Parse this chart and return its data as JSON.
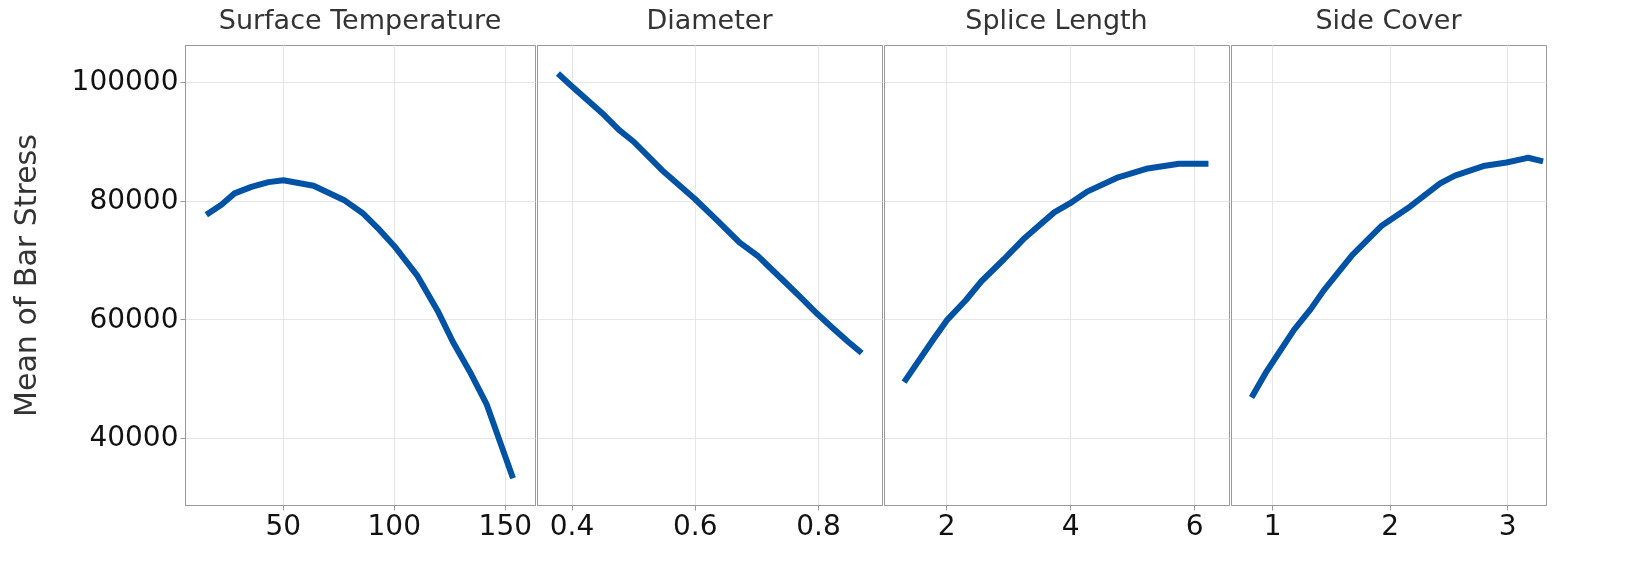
{
  "chart_data": [
    {
      "type": "line",
      "title": "Surface Temperature",
      "ylabel": "Mean of Bar Stress",
      "color": "#0052a5",
      "grid": true,
      "xlim": [
        6,
        163.6
      ],
      "xticks": [
        50,
        100,
        150
      ],
      "ylim": [
        28700,
        106200
      ],
      "yticks": [
        40000,
        60000,
        80000,
        100000
      ],
      "x": [
        15.6,
        22.4,
        28.3,
        35.9,
        43.6,
        50.3,
        63.9,
        77.5,
        85.9,
        92.7,
        100.3,
        110.5,
        119.8,
        126.6,
        134.2,
        141.9,
        153.7
      ],
      "values": [
        77600,
        79300,
        81200,
        82300,
        83100,
        83400,
        82500,
        80100,
        77900,
        75400,
        72300,
        67400,
        61400,
        56200,
        51200,
        45600,
        33200
      ]
    },
    {
      "type": "line",
      "title": "Diameter",
      "color": "#0052a5",
      "grid": true,
      "tick_labels": "x",
      "xlim": [
        0.344,
        0.904
      ],
      "xticks": [
        0.4,
        0.6,
        0.8
      ],
      "ylim": [
        28700,
        106200
      ],
      "yticks": [
        40000,
        60000,
        80000,
        100000
      ],
      "x": [
        0.378,
        0.4,
        0.449,
        0.477,
        0.501,
        0.547,
        0.6,
        0.636,
        0.673,
        0.702,
        0.748,
        0.77,
        0.798,
        0.823,
        0.849,
        0.871
      ],
      "values": [
        101400,
        99300,
        94800,
        91900,
        89900,
        85100,
        80300,
        76700,
        72900,
        70700,
        66100,
        63900,
        61000,
        58600,
        56200,
        54300
      ]
    },
    {
      "type": "line",
      "title": "Splice Length",
      "color": "#0052a5",
      "grid": true,
      "tick_labels": "x",
      "xlim": [
        1.0,
        6.56
      ],
      "xticks": [
        2,
        4,
        6
      ],
      "ylim": [
        28700,
        106200
      ],
      "yticks": [
        40000,
        60000,
        80000,
        100000
      ],
      "x": [
        1.324,
        1.788,
        2.011,
        2.318,
        2.57,
        2.933,
        3.268,
        3.743,
        3.994,
        4.274,
        4.749,
        5.251,
        5.754,
        6.229
      ],
      "values": [
        49400,
        56500,
        59800,
        63200,
        66400,
        70100,
        73700,
        78000,
        79500,
        81500,
        83800,
        85400,
        86200,
        86200
      ]
    },
    {
      "type": "line",
      "title": "Side Cover",
      "color": "#0052a5",
      "grid": true,
      "tick_labels": "x",
      "xlim": [
        0.65,
        3.33
      ],
      "xticks": [
        1,
        2,
        3
      ],
      "ylim": [
        28700,
        106200
      ],
      "yticks": [
        40000,
        60000,
        80000,
        100000
      ],
      "x": [
        0.825,
        0.946,
        1.186,
        1.328,
        1.441,
        1.681,
        1.935,
        2.175,
        2.429,
        2.556,
        2.797,
        2.994,
        3.178,
        3.305
      ],
      "values": [
        46800,
        51000,
        58200,
        61700,
        64900,
        70800,
        75800,
        79000,
        82900,
        84200,
        85800,
        86400,
        87200,
        86600
      ]
    }
  ]
}
